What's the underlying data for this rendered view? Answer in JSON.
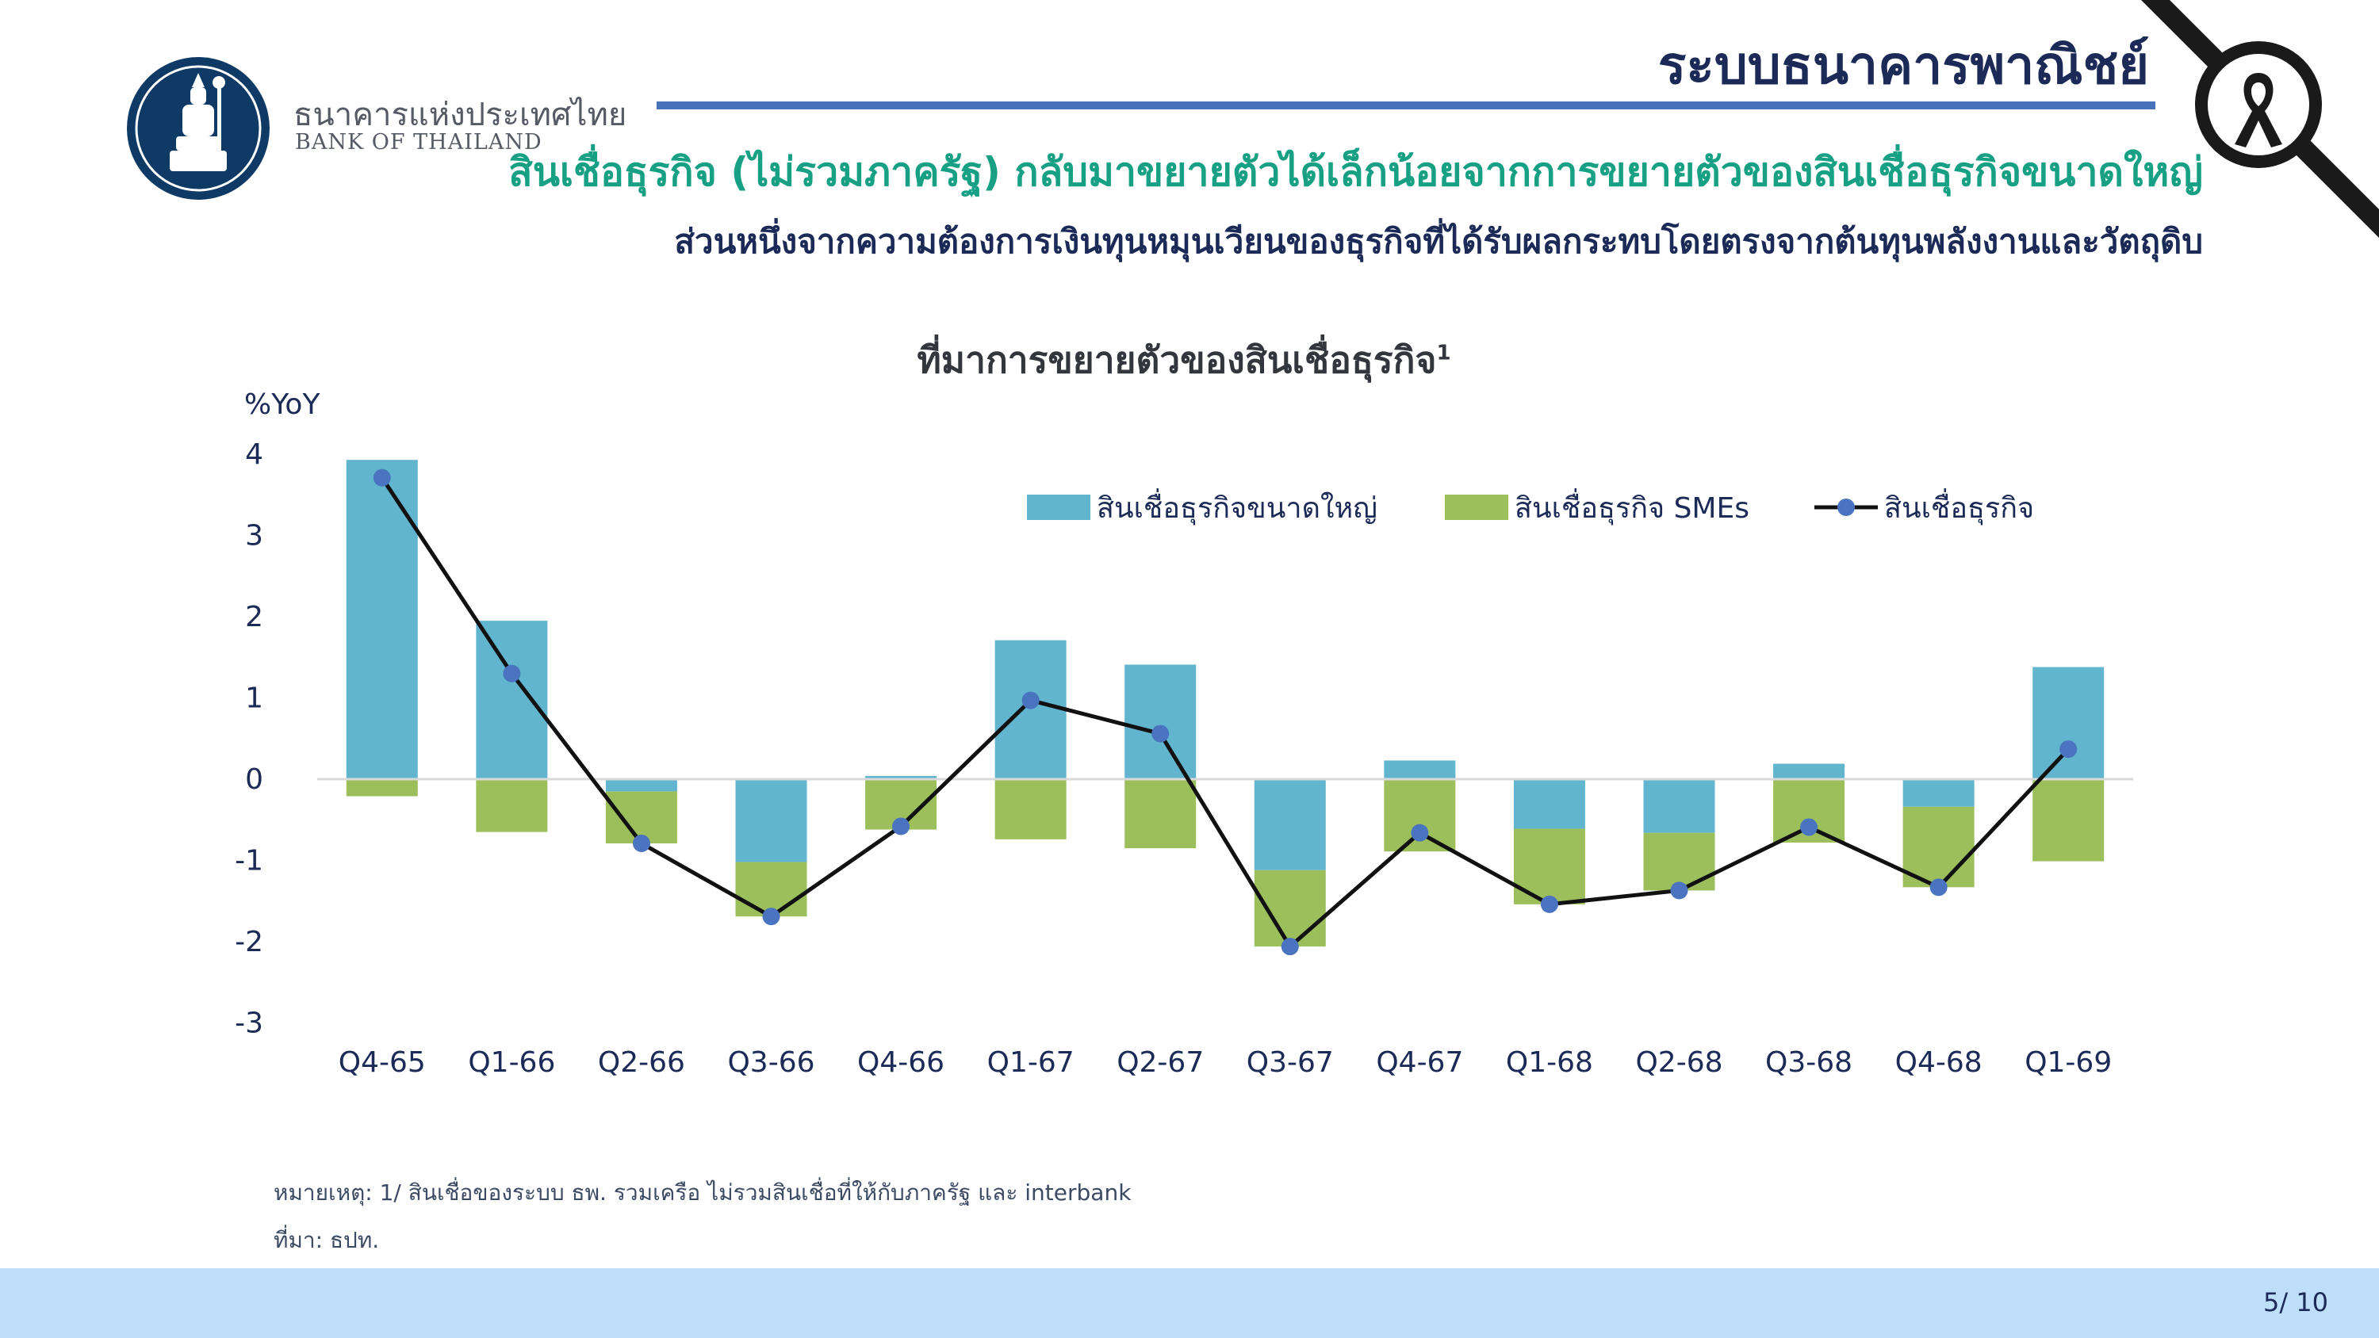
{
  "header": {
    "bank_name_th": "ธนาคารแห่งประเทศไทย",
    "bank_name_en": "BANK OF THAILAND",
    "section_title": "ระบบธนาคารพาณิชย์",
    "headline": "สินเชื่อธุรกิจ (ไม่รวมภาครัฐ) กลับมาขยายตัวได้เล็กน้อยจากการขยายตัวของสินเชื่อธุรกิจขนาดใหญ่",
    "subheadline": "ส่วนหนึ่งจากความต้องการเงินทุนหมุนเวียนของธุรกิจที่ได้รับผลกระทบโดยตรงจากต้นทุนพลังงานและวัตถุดิบ",
    "logo_icon": "bank-of-thailand-seal-icon",
    "ribbon_icon": "mourning-ribbon-icon"
  },
  "chart_data": {
    "type": "bar",
    "stacked": true,
    "title": "ที่มาการขยายตัวของสินเชื่อธุรกิจ",
    "title_superscript": "1",
    "ylabel": "%YoY",
    "xlabel": "",
    "ylim": [
      -3,
      4
    ],
    "yticks": [
      4,
      3,
      2,
      1,
      0,
      -1,
      -2,
      -3
    ],
    "grid": false,
    "legend_position": "top-right",
    "categories": [
      "Q4-65",
      "Q1-66",
      "Q2-66",
      "Q3-66",
      "Q4-66",
      "Q1-67",
      "Q2-67",
      "Q3-67",
      "Q4-67",
      "Q1-68",
      "Q2-68",
      "Q3-68",
      "Q4-68",
      "Q1-69"
    ],
    "series": [
      {
        "name": "สินเชื่อธุรกิจขนาดใหญ่",
        "type": "bar",
        "color": "#62b5cf",
        "values": [
          3.93,
          1.95,
          -0.15,
          -1.02,
          0.04,
          1.71,
          1.41,
          -1.12,
          0.23,
          -0.61,
          -0.66,
          0.19,
          -0.34,
          1.38
        ]
      },
      {
        "name": "สินเชื่อธุรกิจ SMEs",
        "type": "bar",
        "color": "#9cbf5c",
        "values": [
          -0.21,
          -0.65,
          -0.64,
          -0.67,
          -0.62,
          -0.74,
          -0.85,
          -0.94,
          -0.89,
          -0.93,
          -0.71,
          -0.78,
          -0.99,
          -1.01
        ]
      },
      {
        "name": "สินเชื่อธุรกิจ",
        "type": "line",
        "color": "#111111",
        "marker_color": "#4a73c0",
        "values": [
          3.71,
          1.3,
          -0.79,
          -1.69,
          -0.58,
          0.97,
          0.56,
          -2.06,
          -0.66,
          -1.54,
          -1.37,
          -0.59,
          -1.33,
          0.37
        ]
      }
    ]
  },
  "footer": {
    "note": "หมายเหตุ: 1/ สินเชื่อของระบบ ธพ. รวมเครือ ไม่รวมสินเชื่อที่ให้กับภาครัฐ และ interbank",
    "source": "ที่มา: ธปท.",
    "page_number": "5/ 10"
  }
}
